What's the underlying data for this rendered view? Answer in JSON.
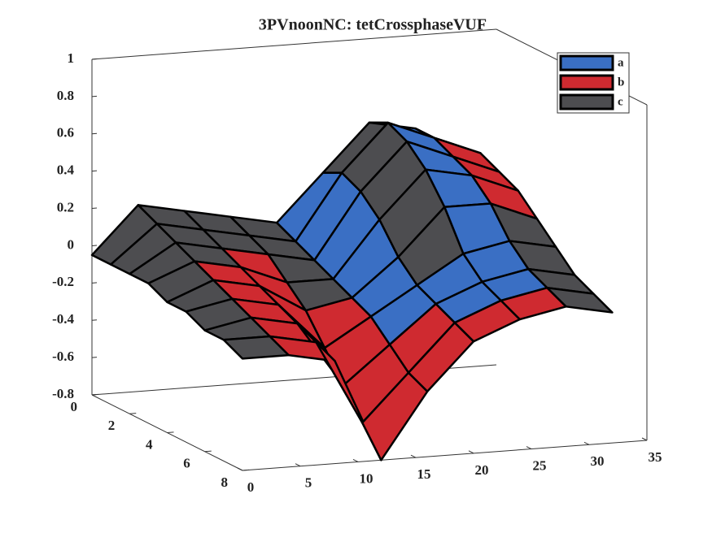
{
  "chart_data": {
    "type": "surface",
    "title": "3PVnoonNC: tetCrossphaseVUF",
    "x": [
      0,
      4,
      8,
      12,
      16,
      20,
      24,
      28,
      32
    ],
    "y": [
      0,
      1,
      2,
      3,
      4,
      5,
      6,
      7,
      8
    ],
    "z": [
      [
        -0.05,
        0.2,
        0.15,
        0.1,
        0.05,
        0.3,
        0.55,
        0.5,
        0.35
      ],
      [
        -0.05,
        0.15,
        0.1,
        0.05,
        0.0,
        0.35,
        0.6,
        0.5,
        0.4
      ],
      [
        -0.05,
        0.1,
        0.05,
        0.0,
        -0.05,
        0.3,
        0.55,
        0.45,
        0.35
      ],
      [
        -0.05,
        0.05,
        0.0,
        -0.1,
        -0.1,
        0.2,
        0.45,
        0.4,
        0.3
      ],
      [
        -0.1,
        0.0,
        -0.05,
        -0.2,
        -0.15,
        0.05,
        0.3,
        0.3,
        0.2
      ],
      [
        -0.1,
        -0.05,
        -0.1,
        -0.35,
        -0.2,
        -0.05,
        0.1,
        0.15,
        0.1
      ],
      [
        -0.15,
        -0.1,
        -0.15,
        -0.5,
        -0.3,
        -0.1,
        0.0,
        0.05,
        0.0
      ],
      [
        -0.15,
        -0.15,
        -0.2,
        -0.65,
        -0.4,
        -0.15,
        -0.05,
        0.0,
        -0.05
      ],
      [
        -0.2,
        -0.2,
        -0.25,
        -0.8,
        -0.45,
        -0.2,
        -0.1,
        -0.05,
        -0.1
      ]
    ],
    "cell_series": [
      [
        2,
        2,
        2,
        2,
        0,
        2,
        0,
        1
      ],
      [
        2,
        2,
        2,
        2,
        0,
        2,
        0,
        1
      ],
      [
        2,
        2,
        1,
        2,
        0,
        2,
        0,
        1
      ],
      [
        2,
        1,
        1,
        2,
        0,
        2,
        0,
        1
      ],
      [
        2,
        1,
        1,
        1,
        0,
        2,
        0,
        2
      ],
      [
        2,
        1,
        1,
        1,
        0,
        0,
        0,
        2
      ],
      [
        2,
        1,
        1,
        1,
        1,
        0,
        0,
        2
      ],
      [
        2,
        1,
        1,
        1,
        1,
        1,
        1,
        2
      ]
    ],
    "series": [
      {
        "name": "a",
        "color": "#3a6fc4"
      },
      {
        "name": "b",
        "color": "#cf2a30"
      },
      {
        "name": "c",
        "color": "#4d4d50"
      }
    ],
    "xlim": [
      0,
      35
    ],
    "ylim": [
      0,
      8
    ],
    "zlim": [
      -0.8,
      1
    ],
    "xticks": [
      0,
      5,
      10,
      15,
      20,
      25,
      30,
      35
    ],
    "yticks": [
      0,
      2,
      4,
      6,
      8
    ],
    "zticks": [
      -0.8,
      -0.6,
      -0.4,
      -0.2,
      0,
      0.2,
      0.4,
      0.6,
      0.8,
      1
    ],
    "legend": "upper right"
  }
}
